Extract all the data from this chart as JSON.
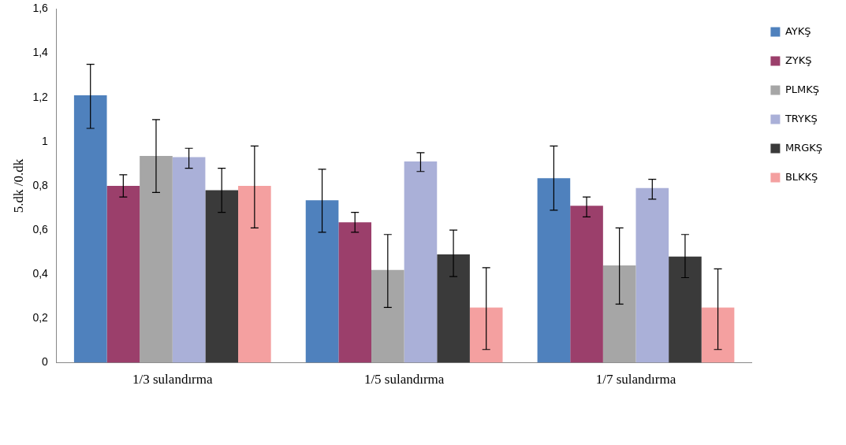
{
  "chart_data": {
    "type": "bar",
    "ylabel": "5.dk /0.dk",
    "categories": [
      "1/3 sulandırma",
      "1/5 sulandırma",
      "1/7 sulandırma"
    ],
    "ylim": [
      0,
      1.6
    ],
    "yticks": [
      0,
      {
        "value": 0.2,
        "label": "0,2"
      },
      {
        "value": 0.4,
        "label": "0,4"
      },
      {
        "value": 0.6,
        "label": "0,6"
      },
      {
        "value": 0.8,
        "label": "0,8"
      },
      1,
      {
        "value": 1.2,
        "label": "1,2"
      },
      {
        "value": 1.4,
        "label": "1,4"
      },
      {
        "value": 1.6,
        "label": "1,6"
      }
    ],
    "grid": false,
    "legend": "right",
    "series": [
      {
        "name": "AYKŞ",
        "color": "#4f81bd",
        "values": [
          1.21,
          0.735,
          0.835
        ],
        "errors": [
          [
            1.06,
            1.35
          ],
          [
            0.59,
            0.875
          ],
          [
            0.69,
            0.98
          ]
        ]
      },
      {
        "name": "ZYKŞ",
        "color": "#9b3f6b",
        "values": [
          0.8,
          0.635,
          0.71
        ],
        "errors": [
          [
            0.75,
            0.85
          ],
          [
            0.59,
            0.68
          ],
          [
            0.66,
            0.75
          ]
        ]
      },
      {
        "name": "PLMKŞ",
        "color": "#a6a6a6",
        "values": [
          0.935,
          0.42,
          0.44
        ],
        "errors": [
          [
            0.77,
            1.1
          ],
          [
            0.25,
            0.58
          ],
          [
            0.265,
            0.61
          ]
        ]
      },
      {
        "name": "TRYKŞ",
        "color": "#aab0d8",
        "values": [
          0.93,
          0.91,
          0.79
        ],
        "errors": [
          [
            0.88,
            0.97
          ],
          [
            0.865,
            0.95
          ],
          [
            0.74,
            0.83
          ]
        ]
      },
      {
        "name": "MRGKŞ",
        "color": "#3a3a3a",
        "values": [
          0.78,
          0.49,
          0.48
        ],
        "errors": [
          [
            0.68,
            0.88
          ],
          [
            0.39,
            0.6
          ],
          [
            0.385,
            0.58
          ]
        ]
      },
      {
        "name": "BLKKŞ",
        "color": "#f4a0a0",
        "values": [
          0.8,
          0.25,
          0.25
        ],
        "errors": [
          [
            0.61,
            0.98
          ],
          [
            0.06,
            0.43
          ],
          [
            0.06,
            0.425
          ]
        ]
      }
    ]
  }
}
